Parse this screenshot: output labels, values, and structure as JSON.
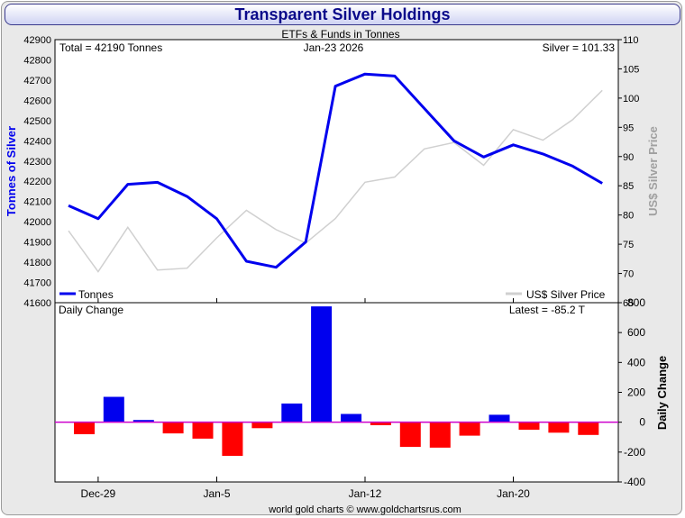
{
  "title": "Transparent Silver Holdings",
  "subtitle": "ETFs & Funds in Tonnes",
  "info": {
    "total": "Total = 42190 Tonnes",
    "date": "Jan-23  2026",
    "silver": "Silver = 101.33",
    "latest": "Latest = -85.2 T"
  },
  "colors": {
    "tonnes": "#0000ee",
    "silver_price": "#d0d0d0",
    "positive_bar": "#0000ee",
    "negative_bar": "#ff0000",
    "zero_line": "#cc00cc",
    "title_text": "#0a0a8a"
  },
  "footer": "world gold charts © www.goldchartsrus.com",
  "chart_data": [
    {
      "type": "line",
      "ylabel": "Tonnes of Silver",
      "y2label": "US$ Silver Price",
      "ylim": [
        41600,
        42900
      ],
      "yticks": [
        41600,
        41700,
        41800,
        41900,
        42000,
        42100,
        42200,
        42300,
        42400,
        42500,
        42600,
        42700,
        42800,
        42900
      ],
      "y2lim": [
        65,
        110
      ],
      "y2ticks": [
        65,
        70,
        75,
        80,
        85,
        90,
        95,
        100,
        105,
        110
      ],
      "xticks": [
        "Dec-29",
        "Jan-5",
        "Jan-12",
        "Jan-20"
      ],
      "xtick_index": [
        1,
        5,
        10,
        15
      ],
      "legend": "bottom",
      "grid": false,
      "series": [
        {
          "name": "Tonnes",
          "axis": "left",
          "values": [
            42080,
            42015,
            42185,
            42195,
            42125,
            42015,
            41805,
            41775,
            41900,
            42670,
            42730,
            42720,
            42560,
            42400,
            42320,
            42380,
            42335,
            42275,
            42190
          ]
        },
        {
          "name": "US$ Silver Price",
          "axis": "right",
          "values": [
            77.3,
            70.3,
            77.9,
            70.6,
            70.9,
            76.1,
            80.8,
            77.5,
            75.2,
            79.4,
            85.6,
            86.5,
            91.3,
            92.4,
            88.5,
            94.6,
            92.8,
            96.3,
            101.33
          ]
        }
      ]
    },
    {
      "type": "bar",
      "title": "Daily Change",
      "ylabel": "Daily Change",
      "ylim": [
        -400,
        800
      ],
      "yticks": [
        -400,
        -200,
        0,
        200,
        400,
        600,
        800
      ],
      "values": [
        -80,
        170,
        15,
        -75,
        -110,
        -225,
        -40,
        125,
        775,
        55,
        -20,
        -165,
        -170,
        -90,
        50,
        -50,
        -70,
        -85.2
      ]
    }
  ]
}
